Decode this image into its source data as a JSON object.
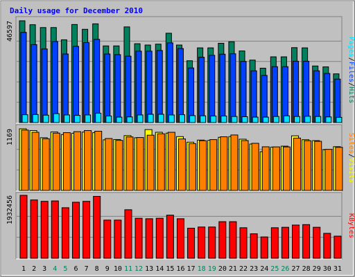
{
  "chart_data": {
    "type": "bar",
    "title": "Daily usage for December 2010",
    "categories": [
      "1",
      "2",
      "3",
      "4",
      "5",
      "6",
      "7",
      "8",
      "9",
      "10",
      "11",
      "12",
      "13",
      "14",
      "15",
      "16",
      "17",
      "18",
      "19",
      "20",
      "21",
      "22",
      "23",
      "24",
      "25",
      "26",
      "27",
      "28",
      "29",
      "30",
      "31"
    ],
    "weekend_days": [
      "4",
      "5",
      "11",
      "12",
      "18",
      "19",
      "25",
      "26"
    ],
    "panels": [
      {
        "y_tick_label": "46597",
        "y_max": 46597,
        "right_label_parts": [
          "Pages",
          "/",
          "Files",
          "/",
          "Hits"
        ],
        "series": [
          {
            "name": "Hits",
            "values": [
              46597,
              44800,
              43500,
              43500,
              37900,
              44900,
              42700,
              45200,
              35100,
              35100,
              43800,
              36100,
              35500,
              35900,
              40900,
              35500,
              28300,
              34200,
              34200,
              36300,
              37000,
              32800,
              28600,
              24900,
              30100,
              30100,
              34300,
              34200,
              25900,
              25500,
              22300
            ]
          },
          {
            "name": "Files",
            "values": [
              41300,
              35700,
              33700,
              37100,
              31400,
              34900,
              36600,
              38100,
              31400,
              31100,
              30400,
              32700,
              32700,
              33000,
              36500,
              33900,
              25000,
              29900,
              30800,
              31300,
              31500,
              28000,
              23700,
              21600,
              25600,
              25600,
              28100,
              28100,
              23700,
              22500,
              19900
            ]
          },
          {
            "name": "Pages",
            "values": [
              3600,
              3700,
              3400,
              4100,
              3500,
              3300,
              3500,
              4300,
              3000,
              2500,
              2600,
              3500,
              3800,
              3800,
              3500,
              3600,
              3200,
              3100,
              3000,
              3000,
              2800,
              2700,
              2500,
              2500,
              2800,
              3100,
              2800,
              2900,
              2800,
              2600,
              2400
            ]
          }
        ]
      },
      {
        "y_tick_label": "1169",
        "y_max": 1169,
        "right_label_parts": [
          "Sites",
          "/",
          "Visits"
        ],
        "series": [
          {
            "name": "Visits",
            "values": [
              1169,
              1136,
              1000,
              1109,
              1060,
              1085,
              1107,
              1096,
              960,
              966,
              1040,
              999,
              1154,
              1103,
              1087,
              1021,
              915,
              955,
              952,
              1008,
              1021,
              972,
              880,
              735,
              822,
              840,
              1036,
              962,
              945,
              772,
              830
            ]
          },
          {
            "name": "Sites",
            "values": [
              1145,
              1103,
              981,
              1087,
              1096,
              1115,
              1136,
              1123,
              985,
              950,
              1015,
              1004,
              1048,
              1075,
              1103,
              977,
              887,
              944,
              964,
              1018,
              1052,
              946,
              894,
              828,
              826,
              826,
              993,
              943,
              932,
              779,
              818
            ]
          }
        ]
      },
      {
        "y_tick_label": "1932456",
        "y_max": 1932456,
        "right_label_parts": [
          "KBytes"
        ],
        "series": [
          {
            "name": "KBytes",
            "values": [
              1932456,
              1790000,
              1748000,
              1760000,
              1552000,
              1720000,
              1748000,
              1900000,
              1172000,
              1172000,
              1490000,
              1228000,
              1214000,
              1228000,
              1324000,
              1214000,
              924000,
              960000,
              960000,
              1124000,
              1124000,
              938000,
              752000,
              656000,
              938000,
              952000,
              1020000,
              1034000,
              952000,
              766000,
              680000
            ]
          }
        ]
      }
    ],
    "colors": {
      "Hits": "#00805c",
      "Files": "#0040ff",
      "Pages": "#00e0ff",
      "Visits": "#ffff00",
      "Sites": "#ff8000",
      "KBytes": "#ff0000",
      "title": "#0000ff",
      "weekend_label": "#00805c",
      "weekday_label": "#000000",
      "background": "#c0c0c0"
    },
    "grid": true,
    "legend": "right"
  }
}
